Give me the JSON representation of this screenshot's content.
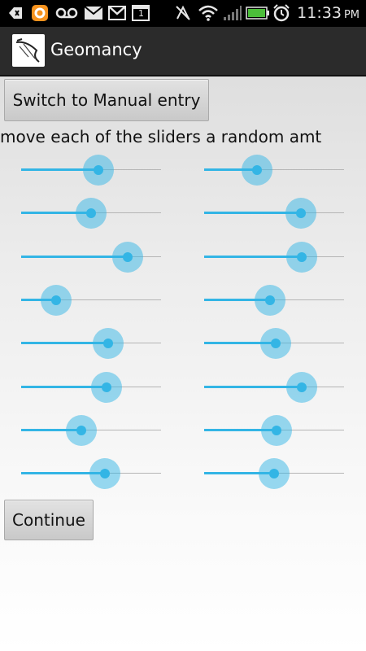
{
  "status_bar": {
    "time": "11:33",
    "ampm": "PM",
    "icons": [
      "back-icon",
      "notification-icon",
      "voicemail-icon",
      "mail-icon",
      "gmail-icon",
      "calendar-icon",
      "no-signal-icon",
      "wifi-icon",
      "signal-icon",
      "battery-icon",
      "alarm-icon"
    ],
    "calendar_day": "1"
  },
  "action_bar": {
    "title": "Geomancy"
  },
  "buttons": {
    "manual_entry": "Switch to Manual entry",
    "continue": "Continue"
  },
  "instruction": "move each of the sliders a random amt",
  "accent_color": "#33b5e5",
  "sliders": {
    "left": [
      0.55,
      0.5,
      0.76,
      0.25,
      0.62,
      0.61,
      0.43,
      0.6
    ],
    "right": [
      0.38,
      0.69,
      0.7,
      0.47,
      0.51,
      0.7,
      0.52,
      0.5
    ]
  }
}
